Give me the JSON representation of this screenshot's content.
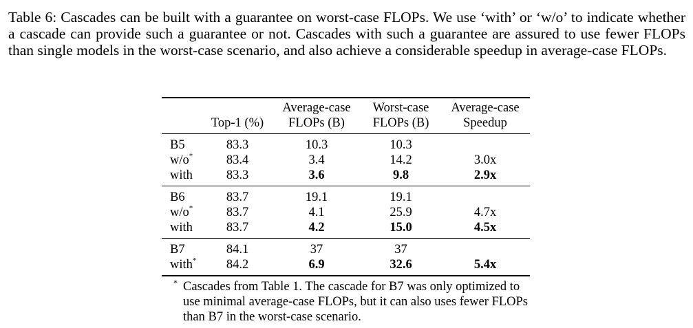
{
  "caption": "Table 6: Cascades can be built with a guarantee on worst-case FLOPs. We use ‘with’ or ‘w/o’ to indicate whether a cascade can provide such a guarantee or not. Cascades with such a guarantee are assured to use fewer FLOPs than single models in the worst-case scenario, and also achieve a considerable speedup in average-case FLOPs.",
  "table": {
    "headers": [
      "",
      "Top-1 (%)",
      "Average-case FLOPs (B)",
      "Worst-case FLOPs (B)",
      "Average-case Speedup"
    ],
    "header_lines": [
      [
        "",
        ""
      ],
      [
        "",
        "Top-1 (%)"
      ],
      [
        "Average-case",
        "FLOPs (B)"
      ],
      [
        "Worst-case",
        "FLOPs (B)"
      ],
      [
        "Average-case",
        "Speedup"
      ]
    ],
    "groups": [
      {
        "rows": [
          {
            "model": "B5",
            "star": "",
            "top1": "83.3",
            "avg": "10.3",
            "worst": "10.3",
            "speedup": "",
            "bold": false
          },
          {
            "model": "w/o",
            "star": "*",
            "top1": "83.4",
            "avg": "3.4",
            "worst": "14.2",
            "speedup": "3.0x",
            "bold": false
          },
          {
            "model": "with",
            "star": "",
            "top1": "83.3",
            "avg": "3.6",
            "worst": "9.8",
            "speedup": "2.9x",
            "bold": true
          }
        ]
      },
      {
        "rows": [
          {
            "model": "B6",
            "star": "",
            "top1": "83.7",
            "avg": "19.1",
            "worst": "19.1",
            "speedup": "",
            "bold": false
          },
          {
            "model": "w/o",
            "star": "*",
            "top1": "83.7",
            "avg": "4.1",
            "worst": "25.9",
            "speedup": "4.7x",
            "bold": false
          },
          {
            "model": "with",
            "star": "",
            "top1": "83.7",
            "avg": "4.2",
            "worst": "15.0",
            "speedup": "4.5x",
            "bold": true
          }
        ]
      },
      {
        "rows": [
          {
            "model": "B7",
            "star": "",
            "top1": "84.1",
            "avg": "37",
            "worst": "37",
            "speedup": "",
            "bold": false
          },
          {
            "model": "with",
            "star": "*",
            "top1": "84.2",
            "avg": "6.9",
            "worst": "32.6",
            "speedup": "5.4x",
            "bold": true
          }
        ]
      }
    ]
  },
  "footnote": {
    "mark": "*",
    "text": "Cascades from Table 1. The cascade for B7 was only optimized to use minimal average-case FLOPs, but it can also uses fewer FLOPs than B7 in the worst-case scenario."
  }
}
